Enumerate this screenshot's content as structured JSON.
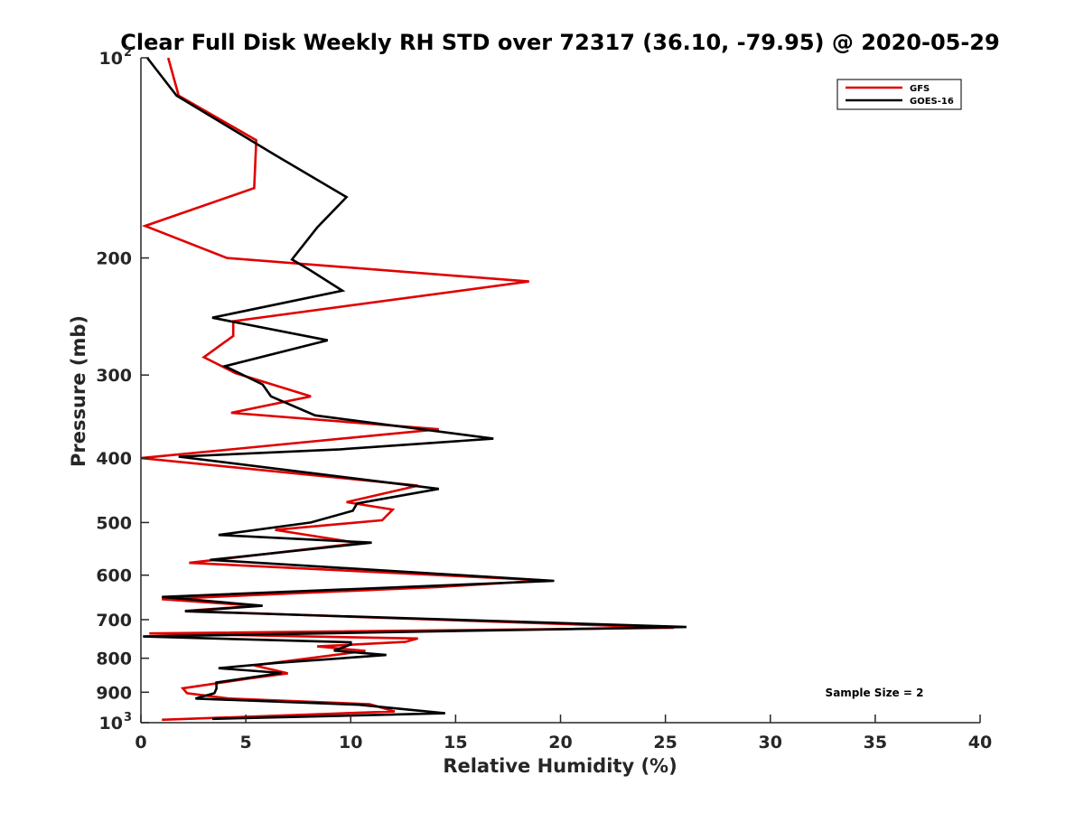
{
  "chart_data": {
    "type": "line",
    "title": "Clear Full Disk Weekly RH STD over 72317 (36.10, -79.95) @ 2020-05-29",
    "xlabel": "Relative Humidity (%)",
    "ylabel": "Pressure (mb)",
    "xlim": [
      0,
      40
    ],
    "ylim": [
      100,
      1000
    ],
    "y_scale": "log",
    "y_reversed": true,
    "grid": false,
    "legend_position": "top-right",
    "x_ticks": [
      {
        "value": 0,
        "label": "0"
      },
      {
        "value": 5,
        "label": "5"
      },
      {
        "value": 10,
        "label": "10"
      },
      {
        "value": 15,
        "label": "15"
      },
      {
        "value": 20,
        "label": "20"
      },
      {
        "value": 25,
        "label": "25"
      },
      {
        "value": 30,
        "label": "30"
      },
      {
        "value": 35,
        "label": "35"
      },
      {
        "value": 40,
        "label": "40"
      }
    ],
    "y_ticks": [
      {
        "value": 100,
        "label": "10",
        "exp": "2"
      },
      {
        "value": 200,
        "label": "200"
      },
      {
        "value": 300,
        "label": "300"
      },
      {
        "value": 400,
        "label": "400"
      },
      {
        "value": 500,
        "label": "500"
      },
      {
        "value": 600,
        "label": "600"
      },
      {
        "value": 700,
        "label": "700"
      },
      {
        "value": 800,
        "label": "800"
      },
      {
        "value": 900,
        "label": "900"
      },
      {
        "value": 1000,
        "label": "10",
        "exp": "3"
      }
    ],
    "annotation": "Sample Size = 2",
    "series": [
      {
        "name": "GFS",
        "color": "#e00000",
        "points": [
          [
            1.3,
            100
          ],
          [
            1.8,
            114
          ],
          [
            5.5,
            133
          ],
          [
            5.4,
            157
          ],
          [
            0.2,
            179
          ],
          [
            4.1,
            200
          ],
          [
            18.5,
            217
          ],
          [
            4.4,
            249
          ],
          [
            4.4,
            262
          ],
          [
            3.0,
            282
          ],
          [
            4.5,
            298
          ],
          [
            8.1,
            323
          ],
          [
            4.3,
            342
          ],
          [
            14.2,
            362
          ],
          [
            0.0,
            400
          ],
          [
            13.2,
            440
          ],
          [
            9.8,
            466
          ],
          [
            12.0,
            478
          ],
          [
            11.5,
            496
          ],
          [
            6.4,
            513
          ],
          [
            10.4,
            537
          ],
          [
            2.3,
            575
          ],
          [
            19.3,
            611
          ],
          [
            14.2,
            625
          ],
          [
            1.0,
            652
          ],
          [
            5.5,
            667
          ],
          [
            2.1,
            679
          ],
          [
            25.4,
            720
          ],
          [
            0.4,
            734
          ],
          [
            13.2,
            747
          ],
          [
            12.6,
            756
          ],
          [
            8.4,
            768
          ],
          [
            10.7,
            780
          ],
          [
            5.4,
            820
          ],
          [
            7.0,
            843
          ],
          [
            5.2,
            858
          ],
          [
            2.0,
            888
          ],
          [
            2.2,
            903
          ],
          [
            4.2,
            920
          ],
          [
            10.9,
            938
          ],
          [
            12.1,
            962
          ],
          [
            1.0,
            990
          ]
        ]
      },
      {
        "name": "GOES-16",
        "color": "#000000",
        "points": [
          [
            0.3,
            100
          ],
          [
            1.7,
            114
          ],
          [
            6.4,
            140
          ],
          [
            9.8,
            162
          ],
          [
            8.4,
            180
          ],
          [
            7.2,
            201
          ],
          [
            8.0,
            208
          ],
          [
            9.6,
            224
          ],
          [
            3.4,
            246
          ],
          [
            8.9,
            266
          ],
          [
            4.0,
            291
          ],
          [
            5.8,
            310
          ],
          [
            6.2,
            323
          ],
          [
            8.3,
            345
          ],
          [
            16.8,
            374
          ],
          [
            9.5,
            388
          ],
          [
            1.8,
            398
          ],
          [
            14.2,
            445
          ],
          [
            10.3,
            468
          ],
          [
            10.1,
            480
          ],
          [
            8.1,
            500
          ],
          [
            3.7,
            522
          ],
          [
            11.0,
            536
          ],
          [
            3.3,
            569
          ],
          [
            19.7,
            612
          ],
          [
            1.0,
            647
          ],
          [
            5.8,
            667
          ],
          [
            2.1,
            680
          ],
          [
            26.0,
            718
          ],
          [
            0.1,
            742
          ],
          [
            10.0,
            757
          ],
          [
            10.0,
            763
          ],
          [
            9.2,
            779
          ],
          [
            11.7,
            791
          ],
          [
            6.5,
            813
          ],
          [
            3.7,
            828
          ],
          [
            6.7,
            842
          ],
          [
            3.6,
            870
          ],
          [
            3.6,
            889
          ],
          [
            3.5,
            903
          ],
          [
            2.6,
            920
          ],
          [
            10.4,
            940
          ],
          [
            14.5,
            968
          ],
          [
            3.4,
            987
          ]
        ]
      }
    ]
  }
}
